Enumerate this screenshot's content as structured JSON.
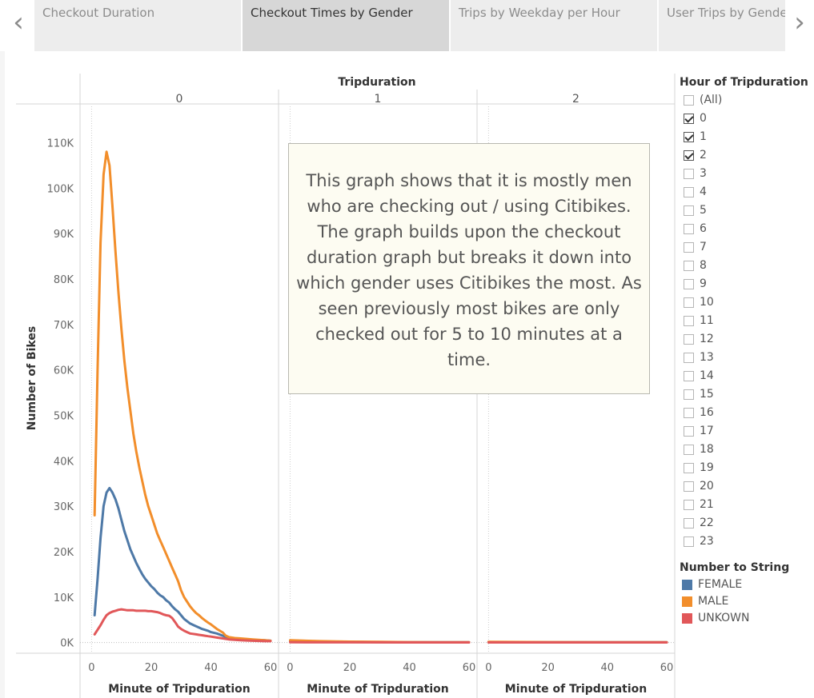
{
  "tabs": [
    {
      "label": "Checkout Duration",
      "active": false
    },
    {
      "label": "Checkout Times by Gender",
      "active": true
    },
    {
      "label": "Trips by Weekday per Hour",
      "active": false
    },
    {
      "label": "User Trips by Gender by Weekday",
      "active": false
    }
  ],
  "nav": {
    "prev_icon": "chevron-left-icon",
    "next_icon": "chevron-right-icon"
  },
  "annotation": {
    "text": "This graph shows that it is mostly men who are checking out / using Citibikes. The graph builds upon the checkout duration graph but breaks it down into which gender uses Citibikes the most. As seen previously most bikes are only checked out for 5 to 10 minutes at a time."
  },
  "filter": {
    "title": "Hour of Tripduration",
    "items": [
      {
        "label": "(All)",
        "checked": false
      },
      {
        "label": "0",
        "checked": true
      },
      {
        "label": "1",
        "checked": true
      },
      {
        "label": "2",
        "checked": true
      },
      {
        "label": "3",
        "checked": false
      },
      {
        "label": "4",
        "checked": false
      },
      {
        "label": "5",
        "checked": false
      },
      {
        "label": "6",
        "checked": false
      },
      {
        "label": "7",
        "checked": false
      },
      {
        "label": "8",
        "checked": false
      },
      {
        "label": "9",
        "checked": false
      },
      {
        "label": "10",
        "checked": false
      },
      {
        "label": "11",
        "checked": false
      },
      {
        "label": "12",
        "checked": false
      },
      {
        "label": "13",
        "checked": false
      },
      {
        "label": "14",
        "checked": false
      },
      {
        "label": "15",
        "checked": false
      },
      {
        "label": "16",
        "checked": false
      },
      {
        "label": "17",
        "checked": false
      },
      {
        "label": "18",
        "checked": false
      },
      {
        "label": "19",
        "checked": false
      },
      {
        "label": "20",
        "checked": false
      },
      {
        "label": "21",
        "checked": false
      },
      {
        "label": "22",
        "checked": false
      },
      {
        "label": "23",
        "checked": false
      }
    ]
  },
  "chart_data": {
    "type": "line",
    "title": "",
    "column_header": "Tripduration",
    "panels": [
      "0",
      "1",
      "2"
    ],
    "xlabel": "Minute of Tripduration",
    "ylabel": "Number of Bikes",
    "xlim": [
      -2,
      60
    ],
    "ylim": [
      -2000,
      118000
    ],
    "xticks": [
      0,
      20,
      40,
      60
    ],
    "xtick_labels": [
      "0",
      "20",
      "40",
      "60"
    ],
    "yticks": [
      0,
      10000,
      20000,
      30000,
      40000,
      50000,
      60000,
      70000,
      80000,
      90000,
      100000,
      110000
    ],
    "ytick_labels": [
      "0K",
      "10K",
      "20K",
      "30K",
      "40K",
      "50K",
      "60K",
      "70K",
      "80K",
      "90K",
      "100K",
      "110K"
    ],
    "legend_title": "Number to String",
    "legend_position": "right",
    "grid": false,
    "series": [
      {
        "name": "FEMALE",
        "color": "#4e79a7",
        "panels": [
          [
            [
              1,
              6000
            ],
            [
              2,
              14000
            ],
            [
              3,
              23000
            ],
            [
              4,
              30000
            ],
            [
              5,
              33000
            ],
            [
              6,
              34000
            ],
            [
              7,
              33000
            ],
            [
              8,
              31500
            ],
            [
              9,
              29500
            ],
            [
              10,
              27000
            ],
            [
              11,
              24500
            ],
            [
              12,
              22500
            ],
            [
              13,
              20500
            ],
            [
              14,
              19000
            ],
            [
              15,
              17500
            ],
            [
              16,
              16200
            ],
            [
              17,
              15000
            ],
            [
              18,
              14000
            ],
            [
              19,
              13200
            ],
            [
              20,
              12400
            ],
            [
              21,
              11800
            ],
            [
              22,
              11000
            ],
            [
              23,
              10400
            ],
            [
              24,
              10000
            ],
            [
              25,
              9300
            ],
            [
              26,
              8800
            ],
            [
              27,
              8000
            ],
            [
              28,
              7300
            ],
            [
              29,
              6800
            ],
            [
              30,
              6000
            ],
            [
              31,
              5200
            ],
            [
              32,
              4700
            ],
            [
              33,
              4200
            ],
            [
              34,
              3900
            ],
            [
              35,
              3600
            ],
            [
              36,
              3300
            ],
            [
              37,
              3000
            ],
            [
              38,
              2800
            ],
            [
              39,
              2600
            ],
            [
              40,
              2300
            ],
            [
              42,
              2000
            ],
            [
              44,
              1500
            ],
            [
              46,
              1000
            ],
            [
              48,
              900
            ],
            [
              50,
              800
            ],
            [
              52,
              700
            ],
            [
              54,
              600
            ],
            [
              56,
              500
            ],
            [
              58,
              500
            ],
            [
              60,
              400
            ]
          ],
          [
            [
              0,
              300
            ],
            [
              10,
              200
            ],
            [
              20,
              150
            ],
            [
              30,
              100
            ],
            [
              40,
              80
            ],
            [
              50,
              60
            ],
            [
              60,
              50
            ]
          ],
          [
            [
              0,
              100
            ],
            [
              20,
              80
            ],
            [
              40,
              60
            ],
            [
              60,
              50
            ]
          ]
        ]
      },
      {
        "name": "MALE",
        "color": "#f28e2b",
        "panels": [
          [
            [
              1,
              28000
            ],
            [
              2,
              60000
            ],
            [
              3,
              88000
            ],
            [
              4,
              103000
            ],
            [
              5,
              108000
            ],
            [
              6,
              105000
            ],
            [
              7,
              96000
            ],
            [
              8,
              86000
            ],
            [
              9,
              77000
            ],
            [
              10,
              69000
            ],
            [
              11,
              62000
            ],
            [
              12,
              56000
            ],
            [
              13,
              51000
            ],
            [
              14,
              46000
            ],
            [
              15,
              42000
            ],
            [
              16,
              38500
            ],
            [
              17,
              35500
            ],
            [
              18,
              32500
            ],
            [
              19,
              30000
            ],
            [
              20,
              28000
            ],
            [
              21,
              26000
            ],
            [
              22,
              24000
            ],
            [
              23,
              22500
            ],
            [
              24,
              21000
            ],
            [
              25,
              19500
            ],
            [
              26,
              18000
            ],
            [
              27,
              16500
            ],
            [
              28,
              15000
            ],
            [
              29,
              13500
            ],
            [
              30,
              11500
            ],
            [
              31,
              10000
            ],
            [
              32,
              9000
            ],
            [
              33,
              8000
            ],
            [
              34,
              7200
            ],
            [
              35,
              6500
            ],
            [
              36,
              6000
            ],
            [
              37,
              5400
            ],
            [
              38,
              4900
            ],
            [
              39,
              4400
            ],
            [
              40,
              4000
            ],
            [
              42,
              3000
            ],
            [
              44,
              2200
            ],
            [
              45,
              1500
            ],
            [
              46,
              1200
            ],
            [
              48,
              1000
            ],
            [
              50,
              900
            ],
            [
              52,
              800
            ],
            [
              54,
              700
            ],
            [
              56,
              600
            ],
            [
              58,
              500
            ],
            [
              60,
              400
            ]
          ],
          [
            [
              0,
              500
            ],
            [
              10,
              300
            ],
            [
              20,
              200
            ],
            [
              30,
              150
            ],
            [
              40,
              100
            ],
            [
              50,
              80
            ],
            [
              60,
              60
            ]
          ],
          [
            [
              0,
              150
            ],
            [
              20,
              100
            ],
            [
              40,
              80
            ],
            [
              60,
              60
            ]
          ]
        ]
      },
      {
        "name": "UNKOWN",
        "color": "#e15759",
        "panels": [
          [
            [
              1,
              1800
            ],
            [
              2,
              2800
            ],
            [
              3,
              3800
            ],
            [
              4,
              5000
            ],
            [
              5,
              6000
            ],
            [
              6,
              6500
            ],
            [
              7,
              6800
            ],
            [
              8,
              7000
            ],
            [
              9,
              7200
            ],
            [
              10,
              7300
            ],
            [
              11,
              7200
            ],
            [
              12,
              7100
            ],
            [
              13,
              7100
            ],
            [
              14,
              7100
            ],
            [
              15,
              7000
            ],
            [
              16,
              7000
            ],
            [
              17,
              7000
            ],
            [
              18,
              7000
            ],
            [
              19,
              6900
            ],
            [
              20,
              6900
            ],
            [
              21,
              6800
            ],
            [
              22,
              6700
            ],
            [
              23,
              6500
            ],
            [
              24,
              6200
            ],
            [
              25,
              6000
            ],
            [
              26,
              5900
            ],
            [
              27,
              5400
            ],
            [
              28,
              4500
            ],
            [
              29,
              3500
            ],
            [
              30,
              3000
            ],
            [
              31,
              2600
            ],
            [
              32,
              2300
            ],
            [
              33,
              2000
            ],
            [
              34,
              1900
            ],
            [
              35,
              1800
            ],
            [
              36,
              1700
            ],
            [
              37,
              1600
            ],
            [
              38,
              1500
            ],
            [
              39,
              1400
            ],
            [
              40,
              1300
            ],
            [
              42,
              1100
            ],
            [
              44,
              900
            ],
            [
              46,
              700
            ],
            [
              48,
              600
            ],
            [
              50,
              500
            ],
            [
              52,
              450
            ],
            [
              54,
              400
            ],
            [
              56,
              350
            ],
            [
              58,
              300
            ],
            [
              60,
              300
            ]
          ],
          [
            [
              0,
              50
            ],
            [
              20,
              40
            ],
            [
              40,
              30
            ],
            [
              60,
              30
            ]
          ],
          [
            [
              0,
              30
            ],
            [
              30,
              20
            ],
            [
              60,
              20
            ]
          ]
        ]
      }
    ]
  }
}
